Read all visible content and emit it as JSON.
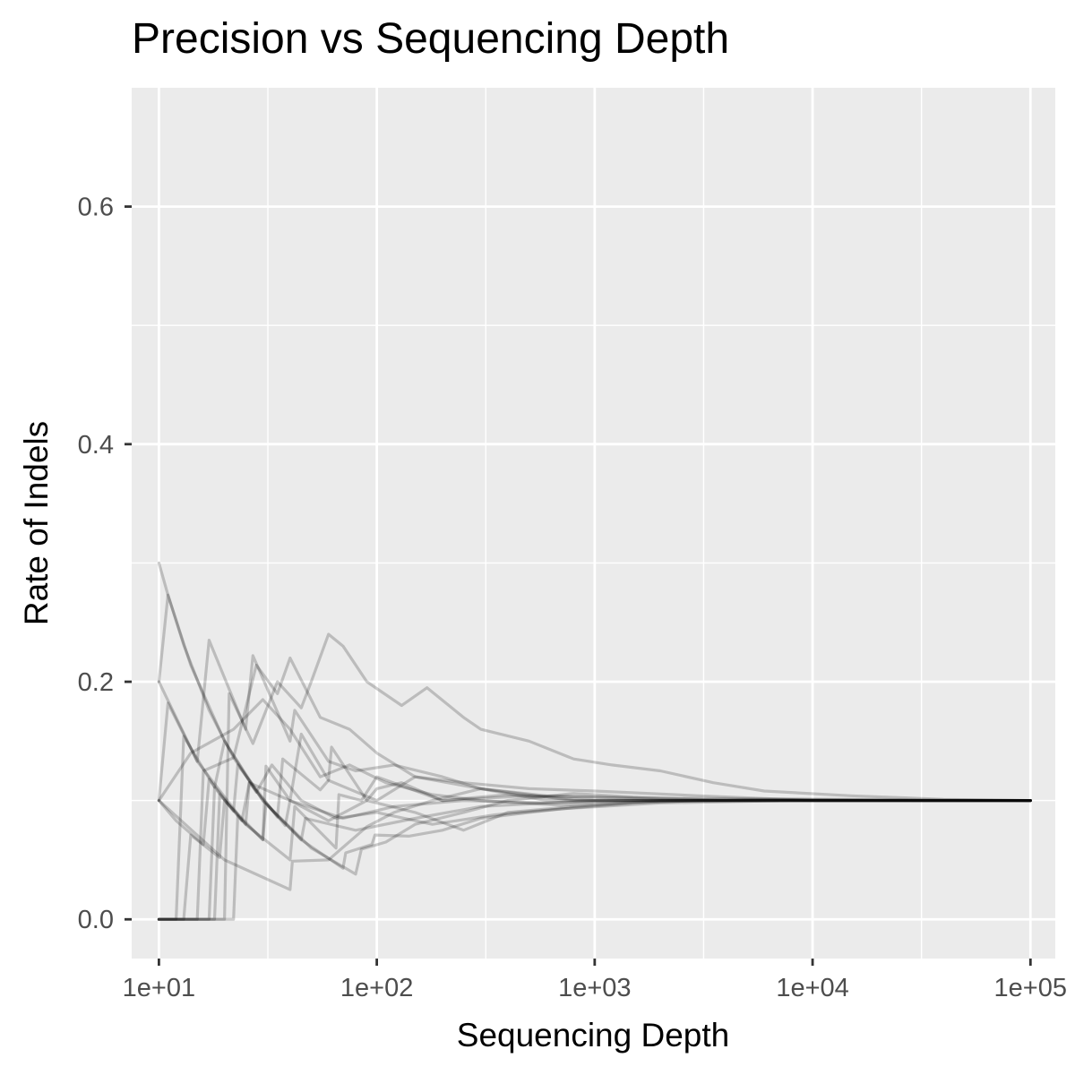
{
  "chart_data": {
    "type": "line",
    "title": "Precision vs Sequencing Depth",
    "xlabel": "Sequencing Depth",
    "ylabel": "Rate of Indels",
    "x_scale": "log10",
    "xlim": [
      7.5,
      130000
    ],
    "ylim": [
      -0.033,
      0.7
    ],
    "x_ticks": [
      10,
      100,
      1000,
      10000,
      100000
    ],
    "x_tick_labels": [
      "1e+01",
      "1e+02",
      "1e+03",
      "1e+04",
      "1e+05"
    ],
    "y_ticks": [
      0.0,
      0.2,
      0.4,
      0.6
    ],
    "y_tick_labels": [
      "0.0",
      "0.2",
      "0.4",
      "0.6"
    ],
    "grid": true,
    "background": "#ebebeb",
    "grid_color": "#ffffff",
    "line_color": "#000000",
    "line_alpha": 0.2,
    "series": [
      {
        "values": [
          [
            10,
            0.3
          ],
          [
            11,
            0.273
          ],
          [
            13,
            0.231
          ],
          [
            17,
            0.176
          ],
          [
            22,
            0.136
          ],
          [
            30,
            0.1
          ],
          [
            45,
            0.067
          ],
          [
            70,
            0.043
          ],
          [
            72,
            0.056
          ],
          [
            95,
            0.063
          ],
          [
            98,
            0.071
          ],
          [
            140,
            0.07
          ],
          [
            200,
            0.075
          ],
          [
            300,
            0.085
          ],
          [
            500,
            0.09
          ],
          [
            800,
            0.094
          ],
          [
            1500,
            0.098
          ],
          [
            3000,
            0.1
          ],
          [
            8000,
            0.101
          ],
          [
            30000,
            0.1
          ],
          [
            100000,
            0.1
          ]
        ]
      },
      {
        "values": [
          [
            10,
            0.2
          ],
          [
            11,
            0.273
          ],
          [
            14,
            0.214
          ],
          [
            20,
            0.15
          ],
          [
            30,
            0.1
          ],
          [
            50,
            0.06
          ],
          [
            80,
            0.038
          ],
          [
            85,
            0.059
          ],
          [
            110,
            0.065
          ],
          [
            150,
            0.08
          ],
          [
            250,
            0.09
          ],
          [
            400,
            0.1
          ],
          [
            800,
            0.106
          ],
          [
            1500,
            0.103
          ],
          [
            4000,
            0.1
          ],
          [
            20000,
            0.1
          ],
          [
            100000,
            0.1
          ]
        ]
      },
      {
        "values": [
          [
            10,
            0.2
          ],
          [
            15,
            0.133
          ],
          [
            25,
            0.08
          ],
          [
            26,
            0.115
          ],
          [
            40,
            0.1
          ],
          [
            60,
            0.083
          ],
          [
            90,
            0.1
          ],
          [
            100,
            0.11
          ],
          [
            130,
            0.115
          ],
          [
            200,
            0.1
          ],
          [
            400,
            0.105
          ],
          [
            1000,
            0.1
          ],
          [
            3000,
            0.1
          ],
          [
            100000,
            0.1
          ]
        ]
      },
      {
        "values": [
          [
            10,
            0.1
          ],
          [
            20,
            0.05
          ],
          [
            40,
            0.025
          ],
          [
            41,
            0.049
          ],
          [
            60,
            0.05
          ],
          [
            90,
            0.078
          ],
          [
            120,
            0.09
          ],
          [
            180,
            0.1
          ],
          [
            300,
            0.11
          ],
          [
            600,
            0.1
          ],
          [
            2000,
            0.1
          ],
          [
            10000,
            0.1
          ],
          [
            100000,
            0.1
          ]
        ]
      },
      {
        "values": [
          [
            10,
            0.0
          ],
          [
            18,
            0.0
          ],
          [
            19,
            0.105
          ],
          [
            25,
            0.08
          ],
          [
            40,
            0.05
          ],
          [
            42,
            0.095
          ],
          [
            65,
            0.06
          ],
          [
            67,
            0.105
          ],
          [
            85,
            0.1
          ],
          [
            100,
            0.12
          ],
          [
            200,
            0.1
          ],
          [
            500,
            0.104
          ],
          [
            2000,
            0.102
          ],
          [
            100000,
            0.1
          ]
        ]
      },
      {
        "values": [
          [
            10,
            0.0
          ],
          [
            13,
            0.0
          ],
          [
            14,
            0.071
          ],
          [
            19,
            0.052
          ],
          [
            20,
            0.1
          ],
          [
            30,
            0.067
          ],
          [
            31,
            0.097
          ],
          [
            45,
            0.067
          ],
          [
            47,
            0.085
          ],
          [
            80,
            0.075
          ],
          [
            150,
            0.085
          ],
          [
            300,
            0.095
          ],
          [
            1000,
            0.1
          ],
          [
            100000,
            0.1
          ]
        ]
      },
      {
        "values": [
          [
            10,
            0.0
          ],
          [
            22,
            0.0
          ],
          [
            23,
            0.087
          ],
          [
            30,
            0.067
          ],
          [
            31,
            0.129
          ],
          [
            40,
            0.1
          ],
          [
            45,
            0.156
          ],
          [
            60,
            0.117
          ],
          [
            62,
            0.145
          ],
          [
            90,
            0.1
          ],
          [
            150,
            0.09
          ],
          [
            250,
            0.075
          ],
          [
            400,
            0.09
          ],
          [
            800,
            0.095
          ],
          [
            2000,
            0.1
          ],
          [
            100000,
            0.1
          ]
        ]
      },
      {
        "values": [
          [
            10,
            0.0
          ],
          [
            17,
            0.0
          ],
          [
            18,
            0.111
          ],
          [
            22,
            0.091
          ],
          [
            23,
            0.13
          ],
          [
            35,
            0.086
          ],
          [
            37,
            0.135
          ],
          [
            55,
            0.109
          ],
          [
            60,
            0.117
          ],
          [
            100,
            0.1
          ],
          [
            150,
            0.12
          ],
          [
            300,
            0.11
          ],
          [
            800,
            0.1
          ],
          [
            3000,
            0.1
          ],
          [
            100000,
            0.1
          ]
        ]
      },
      {
        "values": [
          [
            10,
            0.1
          ],
          [
            11,
            0.182
          ],
          [
            15,
            0.133
          ],
          [
            17,
            0.235
          ],
          [
            25,
            0.16
          ],
          [
            27,
            0.222
          ],
          [
            40,
            0.15
          ],
          [
            42,
            0.176
          ],
          [
            60,
            0.133
          ],
          [
            80,
            0.125
          ],
          [
            120,
            0.13
          ],
          [
            200,
            0.12
          ],
          [
            300,
            0.11
          ],
          [
            600,
            0.104
          ],
          [
            2000,
            0.101
          ],
          [
            100000,
            0.1
          ]
        ]
      },
      {
        "values": [
          [
            10,
            0.0
          ],
          [
            20,
            0.0
          ],
          [
            21,
            0.19
          ],
          [
            27,
            0.148
          ],
          [
            35,
            0.2
          ],
          [
            45,
            0.178
          ],
          [
            50,
            0.2
          ],
          [
            60,
            0.24
          ],
          [
            70,
            0.23
          ],
          [
            90,
            0.2
          ],
          [
            130,
            0.18
          ],
          [
            170,
            0.195
          ],
          [
            250,
            0.17
          ],
          [
            300,
            0.16
          ],
          [
            500,
            0.15
          ],
          [
            800,
            0.135
          ],
          [
            1200,
            0.13
          ],
          [
            2000,
            0.125
          ],
          [
            3500,
            0.115
          ],
          [
            6000,
            0.108
          ],
          [
            15000,
            0.104
          ],
          [
            40000,
            0.101
          ],
          [
            100000,
            0.1
          ]
        ]
      },
      {
        "values": [
          [
            10,
            0.0
          ],
          [
            15,
            0.0
          ],
          [
            16,
            0.125
          ],
          [
            22,
            0.136
          ],
          [
            28,
            0.214
          ],
          [
            35,
            0.19
          ],
          [
            40,
            0.22
          ],
          [
            55,
            0.17
          ],
          [
            75,
            0.16
          ],
          [
            100,
            0.14
          ],
          [
            150,
            0.12
          ],
          [
            250,
            0.115
          ],
          [
            500,
            0.11
          ],
          [
            1000,
            0.108
          ],
          [
            3000,
            0.104
          ],
          [
            10000,
            0.1
          ],
          [
            100000,
            0.1
          ]
        ]
      },
      {
        "values": [
          [
            10,
            0.1
          ],
          [
            14,
            0.14
          ],
          [
            22,
            0.16
          ],
          [
            30,
            0.185
          ],
          [
            40,
            0.16
          ],
          [
            55,
            0.12
          ],
          [
            75,
            0.13
          ],
          [
            110,
            0.115
          ],
          [
            180,
            0.105
          ],
          [
            300,
            0.1
          ],
          [
            700,
            0.096
          ],
          [
            1500,
            0.099
          ],
          [
            5000,
            0.1
          ],
          [
            100000,
            0.1
          ]
        ]
      },
      {
        "values": [
          [
            10,
            0.0
          ],
          [
            12,
            0.0
          ],
          [
            13,
            0.154
          ],
          [
            18,
            0.111
          ],
          [
            20,
            0.15
          ],
          [
            28,
            0.107
          ],
          [
            33,
            0.13
          ],
          [
            45,
            0.1
          ],
          [
            65,
            0.085
          ],
          [
            100,
            0.09
          ],
          [
            180,
            0.08
          ],
          [
            350,
            0.088
          ],
          [
            700,
            0.093
          ],
          [
            2000,
            0.098
          ],
          [
            8000,
            0.1
          ],
          [
            100000,
            0.1
          ]
        ]
      },
      {
        "values": [
          [
            10,
            0.1
          ],
          [
            12,
            0.083
          ],
          [
            16,
            0.063
          ],
          [
            17,
            0.118
          ],
          [
            24,
            0.083
          ],
          [
            26,
            0.115
          ],
          [
            38,
            0.079
          ],
          [
            40,
            0.1
          ],
          [
            70,
            0.085
          ],
          [
            120,
            0.095
          ],
          [
            250,
            0.1
          ],
          [
            600,
            0.098
          ],
          [
            1500,
            0.1
          ],
          [
            100000,
            0.1
          ]
        ]
      }
    ]
  }
}
